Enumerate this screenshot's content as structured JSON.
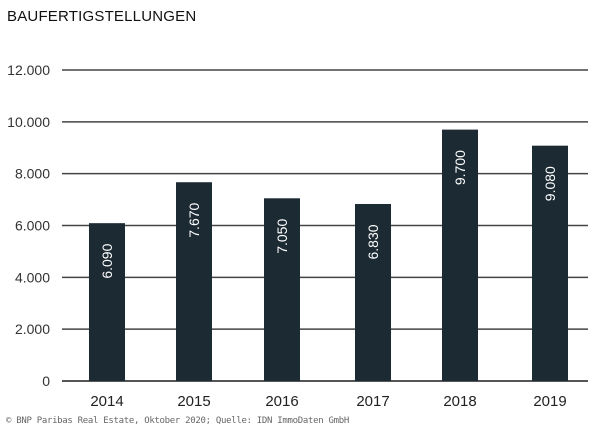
{
  "chart_data": {
    "type": "bar",
    "title": "BAUFERTIGSTELLUNGEN",
    "categories": [
      "2014",
      "2015",
      "2016",
      "2017",
      "2018",
      "2019"
    ],
    "values": [
      6090,
      7670,
      7050,
      6830,
      9700,
      9080
    ],
    "data_labels": [
      "6.090",
      "7.670",
      "7.050",
      "6.830",
      "9.700",
      "9.080"
    ],
    "ylim": [
      0,
      12000
    ],
    "yticks": [
      0,
      2000,
      4000,
      6000,
      8000,
      10000,
      12000
    ],
    "ytick_labels": [
      "0",
      "2.000",
      "4.000",
      "6.000",
      "8.000",
      "10.000",
      "12.000"
    ],
    "grid": true,
    "bar_color": "#1c2a33",
    "source": "© BNP Paribas Real Estate, Oktober 2020; Quelle: IDN ImmoDaten GmbH"
  }
}
